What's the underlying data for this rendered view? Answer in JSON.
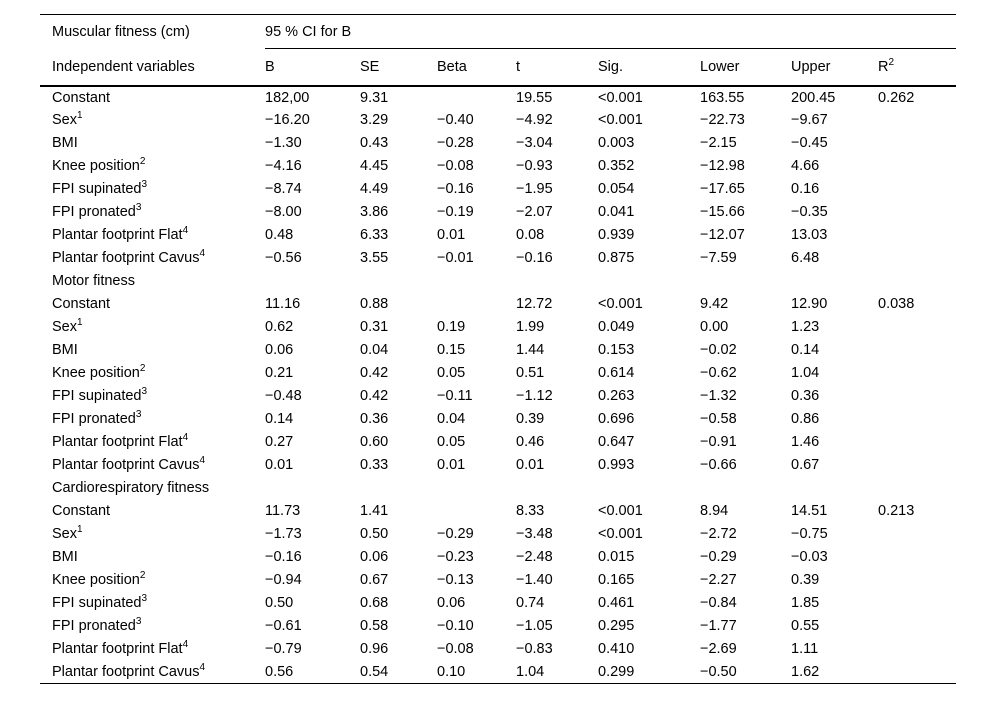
{
  "page": {
    "background_color": "#ffffff",
    "text_color": "#000000",
    "rule_color": "#000000"
  },
  "table": {
    "title": "Muscular fitness (cm)",
    "ci_span_label": "95 % CI for B",
    "row_header": "Independent variables",
    "columns": [
      "B",
      "SE",
      "Beta",
      "t",
      "Sig.",
      "Lower",
      "Upper"
    ],
    "r2_header": {
      "base": "R",
      "sup": "2"
    },
    "col_keys": [
      "b",
      "se",
      "beta",
      "t",
      "sig",
      "lower",
      "upper",
      "r2"
    ],
    "rows": [
      {
        "label": "Constant",
        "section": false,
        "values": [
          "182,00",
          "9.31",
          "",
          "19.55",
          "<0.001",
          "163.55",
          "200.45",
          "0.262"
        ]
      },
      {
        "label": "Sex",
        "sup": "1",
        "section": false,
        "values": [
          "−16.20",
          "3.29",
          "−0.40",
          "−4.92",
          "<0.001",
          "−22.73",
          "−9.67",
          ""
        ]
      },
      {
        "label": "BMI",
        "section": false,
        "values": [
          "−1.30",
          "0.43",
          "−0.28",
          "−3.04",
          "0.003",
          "−2.15",
          "−0.45",
          ""
        ]
      },
      {
        "label": "Knee position",
        "sup": "2",
        "section": false,
        "values": [
          "−4.16",
          "4.45",
          "−0.08",
          "−0.93",
          "0.352",
          "−12.98",
          "4.66",
          ""
        ]
      },
      {
        "label": "FPI supinated",
        "sup": "3",
        "section": false,
        "values": [
          "−8.74",
          "4.49",
          "−0.16",
          "−1.95",
          "0.054",
          "−17.65",
          "0.16",
          ""
        ]
      },
      {
        "label": "FPI pronated",
        "sup": "3",
        "section": false,
        "values": [
          "−8.00",
          "3.86",
          "−0.19",
          "−2.07",
          "0.041",
          "−15.66",
          "−0.35",
          ""
        ]
      },
      {
        "label": "Plantar footprint Flat",
        "sup": "4",
        "section": false,
        "values": [
          "0.48",
          "6.33",
          "0.01",
          "0.08",
          "0.939",
          "−12.07",
          "13.03",
          ""
        ]
      },
      {
        "label": "Plantar footprint Cavus",
        "sup": "4",
        "section": false,
        "values": [
          "−0.56",
          "3.55",
          "−0.01",
          "−0.16",
          "0.875",
          "−7.59",
          "6.48",
          ""
        ]
      },
      {
        "label": "Motor fitness",
        "section": true,
        "values": [
          "",
          "",
          "",
          "",
          "",
          "",
          "",
          ""
        ]
      },
      {
        "label": "Constant",
        "section": false,
        "values": [
          "11.16",
          "0.88",
          "",
          "12.72",
          "<0.001",
          "9.42",
          "12.90",
          "0.038"
        ]
      },
      {
        "label": "Sex",
        "sup": "1",
        "section": false,
        "values": [
          "0.62",
          "0.31",
          "0.19",
          "1.99",
          "0.049",
          "0.00",
          "1.23",
          ""
        ]
      },
      {
        "label": "BMI",
        "section": false,
        "values": [
          "0.06",
          "0.04",
          "0.15",
          "1.44",
          "0.153",
          "−0.02",
          "0.14",
          ""
        ]
      },
      {
        "label": "Knee position",
        "sup": "2",
        "section": false,
        "values": [
          "0.21",
          "0.42",
          "0.05",
          "0.51",
          "0.614",
          "−0.62",
          "1.04",
          ""
        ]
      },
      {
        "label": "FPI supinated",
        "sup": "3",
        "section": false,
        "values": [
          "−0.48",
          "0.42",
          "−0.11",
          "−1.12",
          "0.263",
          "−1.32",
          "0.36",
          ""
        ]
      },
      {
        "label": "FPI pronated",
        "sup": "3",
        "section": false,
        "values": [
          "0.14",
          "0.36",
          "0.04",
          "0.39",
          "0.696",
          "−0.58",
          "0.86",
          ""
        ]
      },
      {
        "label": "Plantar footprint Flat",
        "sup": "4",
        "section": false,
        "values": [
          "0.27",
          "0.60",
          "0.05",
          "0.46",
          "0.647",
          "−0.91",
          "1.46",
          ""
        ]
      },
      {
        "label": "Plantar footprint Cavus",
        "sup": "4",
        "section": false,
        "values": [
          "0.01",
          "0.33",
          "0.01",
          "0.01",
          "0.993",
          "−0.66",
          "0.67",
          ""
        ]
      },
      {
        "label": "Cardiorespiratory fitness",
        "section": true,
        "values": [
          "",
          "",
          "",
          "",
          "",
          "",
          "",
          ""
        ]
      },
      {
        "label": "Constant",
        "section": false,
        "values": [
          "11.73",
          "1.41",
          "",
          "8.33",
          "<0.001",
          "8.94",
          "14.51",
          "0.213"
        ]
      },
      {
        "label": "Sex",
        "sup": "1",
        "section": false,
        "values": [
          "−1.73",
          "0.50",
          "−0.29",
          "−3.48",
          "<0.001",
          "−2.72",
          "−0.75",
          ""
        ]
      },
      {
        "label": "BMI",
        "section": false,
        "values": [
          "−0.16",
          "0.06",
          "−0.23",
          "−2.48",
          "0.015",
          "−0.29",
          "−0.03",
          ""
        ]
      },
      {
        "label": "Knee position",
        "sup": "2",
        "section": false,
        "values": [
          "−0.94",
          "0.67",
          "−0.13",
          "−1.40",
          "0.165",
          "−2.27",
          "0.39",
          ""
        ]
      },
      {
        "label": "FPI supinated",
        "sup": "3",
        "section": false,
        "values": [
          "0.50",
          "0.68",
          "0.06",
          "0.74",
          "0.461",
          "−0.84",
          "1.85",
          ""
        ]
      },
      {
        "label": "FPI pronated",
        "sup": "3",
        "section": false,
        "values": [
          "−0.61",
          "0.58",
          "−0.10",
          "−1.05",
          "0.295",
          "−1.77",
          "0.55",
          ""
        ]
      },
      {
        "label": "Plantar footprint Flat",
        "sup": "4",
        "section": false,
        "values": [
          "−0.79",
          "0.96",
          "−0.08",
          "−0.83",
          "0.410",
          "−2.69",
          "1.11",
          ""
        ]
      },
      {
        "label": "Plantar footprint Cavus",
        "sup": "4",
        "section": false,
        "values": [
          "0.56",
          "0.54",
          "0.10",
          "1.04",
          "0.299",
          "−0.50",
          "1.62",
          ""
        ]
      }
    ]
  }
}
